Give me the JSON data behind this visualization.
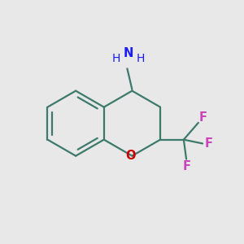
{
  "background_color": "#e8e8e8",
  "bond_color": "#3d7a6b",
  "bond_width": 1.6,
  "oxygen_color": "#cc0000",
  "nitrogen_color": "#1a1aff",
  "fluorine_color": "#cc44bb",
  "figsize": [
    3.0,
    3.0
  ],
  "dpi": 100,
  "C4a": [
    0.0,
    0.5
  ],
  "C4": [
    0.866,
    1.0
  ],
  "C3": [
    1.732,
    0.5
  ],
  "C2": [
    1.732,
    -0.5
  ],
  "O8": [
    0.866,
    -1.0
  ],
  "C8a": [
    0.0,
    -0.5
  ],
  "C5": [
    -0.866,
    1.0
  ],
  "C6": [
    -1.732,
    0.5
  ],
  "C7": [
    -1.732,
    -0.5
  ],
  "C8": [
    -0.866,
    -1.0
  ],
  "scale": 0.72,
  "shift_x": -0.25,
  "shift_y": 0.12,
  "xlim": [
    -2.5,
    2.8
  ],
  "ylim": [
    -2.2,
    2.5
  ]
}
